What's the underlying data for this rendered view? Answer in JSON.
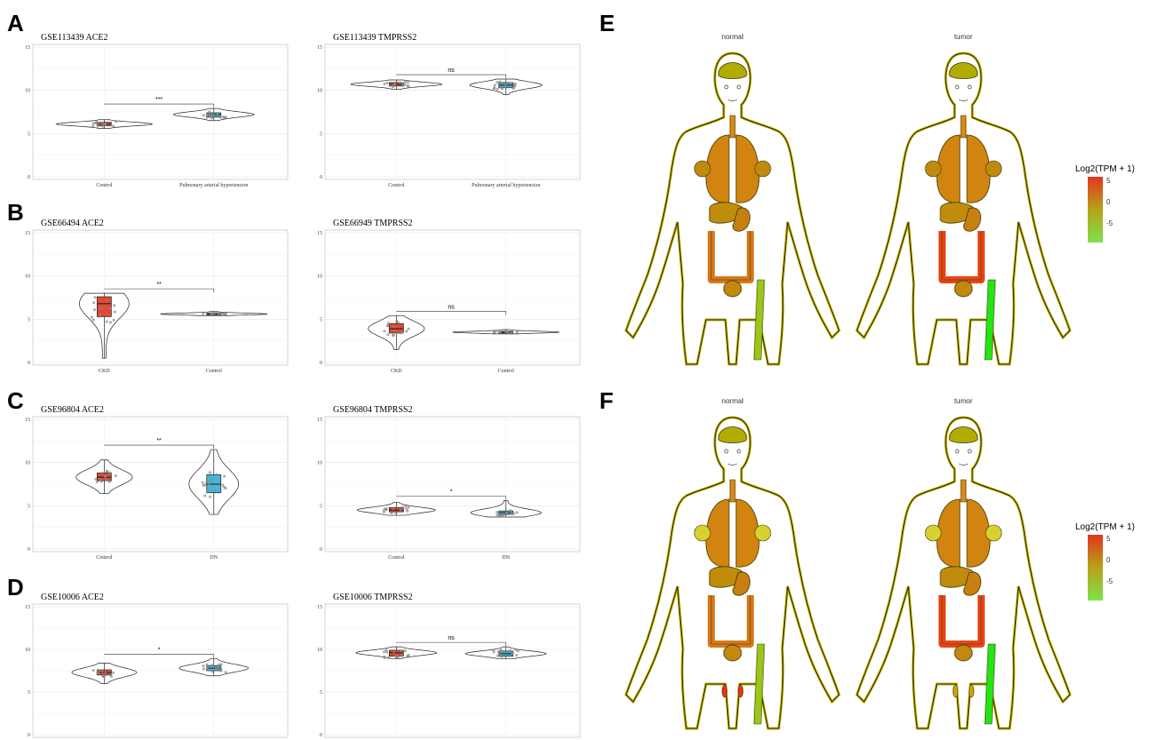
{
  "panels": {
    "A": "A",
    "B": "B",
    "C": "C",
    "D": "D",
    "E": "E",
    "F": "F"
  },
  "chart_data": [
    {
      "type": "violin",
      "panel": "A",
      "title": "GSE113439 ACE2",
      "categories": [
        "Control",
        "Pulmonary arterial hypertension"
      ],
      "ylim": [
        0,
        15
      ],
      "yticks": [
        0,
        5,
        10,
        15
      ],
      "significance": "***",
      "series": [
        {
          "name": "Control",
          "median": 6.1,
          "q1": 5.9,
          "q3": 6.3,
          "min": 5.6,
          "max": 6.6,
          "color": "#e04a33"
        },
        {
          "name": "Pulmonary arterial hypertension",
          "median": 7.2,
          "q1": 6.9,
          "q3": 7.4,
          "min": 6.5,
          "max": 7.9,
          "color": "#4bb3d3"
        }
      ]
    },
    {
      "type": "violin",
      "panel": "A",
      "title": "GSE113439 TMPRSS2",
      "categories": [
        "Control",
        "Pulmonary arterial hypertension"
      ],
      "ylim": [
        0,
        15
      ],
      "yticks": [
        0,
        5,
        10,
        15
      ],
      "significance": "ns",
      "series": [
        {
          "name": "Control",
          "median": 10.7,
          "q1": 10.5,
          "q3": 10.9,
          "min": 10.1,
          "max": 11.2,
          "color": "#e04a33"
        },
        {
          "name": "Pulmonary arterial hypertension",
          "median": 10.6,
          "q1": 10.3,
          "q3": 10.9,
          "min": 9.5,
          "max": 11.3,
          "color": "#4bb3d3"
        }
      ]
    },
    {
      "type": "violin",
      "panel": "B",
      "title": "GSE66494 ACE2",
      "categories": [
        "CKD",
        "Control"
      ],
      "ylim": [
        0,
        15
      ],
      "yticks": [
        0,
        5,
        10,
        15
      ],
      "significance": "**",
      "series": [
        {
          "name": "CKD",
          "median": 6.8,
          "q1": 5.3,
          "q3": 7.6,
          "min": 0.5,
          "max": 8.0,
          "color": "#e04a33"
        },
        {
          "name": "Control",
          "median": 5.6,
          "q1": 5.5,
          "q3": 5.7,
          "min": 5.4,
          "max": 5.9,
          "color": "#4bb3d3"
        }
      ]
    },
    {
      "type": "violin",
      "panel": "B",
      "title": "GSE66949 TMPRSS2",
      "categories": [
        "CKD",
        "Control"
      ],
      "ylim": [
        0,
        15
      ],
      "yticks": [
        0,
        5,
        10,
        15
      ],
      "significance": "ns",
      "series": [
        {
          "name": "CKD",
          "median": 3.9,
          "q1": 3.4,
          "q3": 4.5,
          "min": 1.5,
          "max": 5.4,
          "color": "#e04a33"
        },
        {
          "name": "Control",
          "median": 3.5,
          "q1": 3.4,
          "q3": 3.6,
          "min": 3.3,
          "max": 3.8,
          "color": "#4bb3d3"
        }
      ]
    },
    {
      "type": "violin",
      "panel": "C",
      "title": "GSE96804 ACE2",
      "categories": [
        "Control",
        "DN"
      ],
      "ylim": [
        0,
        15
      ],
      "yticks": [
        0,
        5,
        10,
        15
      ],
      "significance": "**",
      "series": [
        {
          "name": "Control",
          "median": 8.3,
          "q1": 7.9,
          "q3": 8.8,
          "min": 6.4,
          "max": 10.3,
          "color": "#e04a33"
        },
        {
          "name": "DN",
          "median": 7.5,
          "q1": 6.5,
          "q3": 8.6,
          "min": 4.0,
          "max": 11.5,
          "color": "#4bb3d3"
        }
      ]
    },
    {
      "type": "violin",
      "panel": "C",
      "title": "GSE96804 TMPRSS2",
      "categories": [
        "Control",
        "DN"
      ],
      "ylim": [
        0,
        15
      ],
      "yticks": [
        0,
        5,
        10,
        15
      ],
      "significance": "*",
      "series": [
        {
          "name": "Control",
          "median": 4.5,
          "q1": 4.3,
          "q3": 4.8,
          "min": 3.9,
          "max": 5.4,
          "color": "#e04a33"
        },
        {
          "name": "DN",
          "median": 4.2,
          "q1": 4.0,
          "q3": 4.4,
          "min": 3.7,
          "max": 5.6,
          "color": "#4bb3d3"
        }
      ]
    },
    {
      "type": "violin",
      "panel": "D",
      "title": "GSE10006 ACE2",
      "categories": [
        "",
        ""
      ],
      "ylim": [
        0,
        15
      ],
      "yticks": [
        0,
        5,
        10,
        15
      ],
      "significance": "*",
      "series": [
        {
          "name": "",
          "median": 7.3,
          "q1": 7.0,
          "q3": 7.6,
          "min": 6.0,
          "max": 8.4,
          "color": "#e04a33"
        },
        {
          "name": "",
          "median": 7.8,
          "q1": 7.5,
          "q3": 8.1,
          "min": 6.9,
          "max": 8.9,
          "color": "#4bb3d3"
        }
      ]
    },
    {
      "type": "violin",
      "panel": "D",
      "title": "GSE10006 TMPRSS2",
      "categories": [
        "",
        ""
      ],
      "ylim": [
        0,
        15
      ],
      "yticks": [
        0,
        5,
        10,
        15
      ],
      "significance": "ns",
      "series": [
        {
          "name": "",
          "median": 9.6,
          "q1": 9.2,
          "q3": 9.9,
          "min": 8.9,
          "max": 10.3,
          "color": "#e04a33"
        },
        {
          "name": "",
          "median": 9.5,
          "q1": 9.2,
          "q3": 9.8,
          "min": 8.9,
          "max": 10.3,
          "color": "#4bb3d3"
        }
      ]
    }
  ],
  "body_maps": [
    {
      "panel": "E",
      "labels": [
        "normal",
        "tumor"
      ],
      "legend_title": "Log2(TPM + 1)",
      "legend_ticks": [
        "5",
        "0",
        "-5"
      ],
      "colors": {
        "low": "#7ee34a",
        "mid": "#b7a21a",
        "high": "#e2361c"
      }
    },
    {
      "panel": "F",
      "labels": [
        "normal",
        "tumor"
      ],
      "legend_title": "Log2(TPM + 1)",
      "legend_ticks": [
        "5",
        "0",
        "-5"
      ],
      "colors": {
        "low": "#7ee34a",
        "mid": "#b7a21a",
        "high": "#e2361c"
      }
    }
  ]
}
